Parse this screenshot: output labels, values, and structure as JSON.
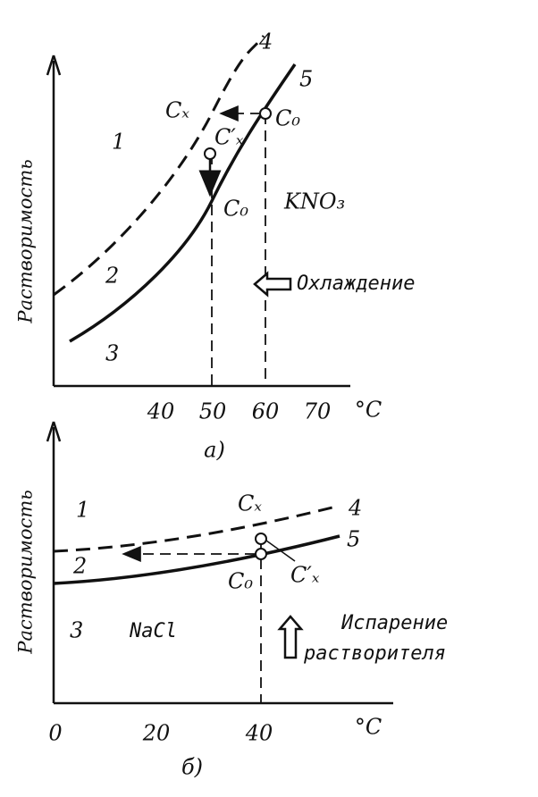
{
  "panels": [
    {
      "y_label": "Растворимость",
      "x_ticks": [
        "40",
        "50",
        "60",
        "70"
      ],
      "x_unit": "°C",
      "regions": [
        "1",
        "2",
        "3"
      ],
      "curves": [
        "4",
        "5"
      ],
      "points": [
        "Cₓ",
        "C′ₓ",
        "C₀",
        "C₀"
      ],
      "substance": "KNO₃",
      "process": [
        "Охлаждение"
      ],
      "caption": "а)"
    },
    {
      "y_label": "Растворимость",
      "x_ticks": [
        "0",
        "20",
        "40"
      ],
      "x_unit": "°C",
      "regions": [
        "1",
        "2",
        "3"
      ],
      "curves": [
        "4",
        "5"
      ],
      "points": [
        "Cₓ",
        "C′ₓ",
        "C₀"
      ],
      "substance": "NaCl",
      "process": [
        "Испарение",
        "растворителя"
      ],
      "caption": "б)"
    }
  ]
}
